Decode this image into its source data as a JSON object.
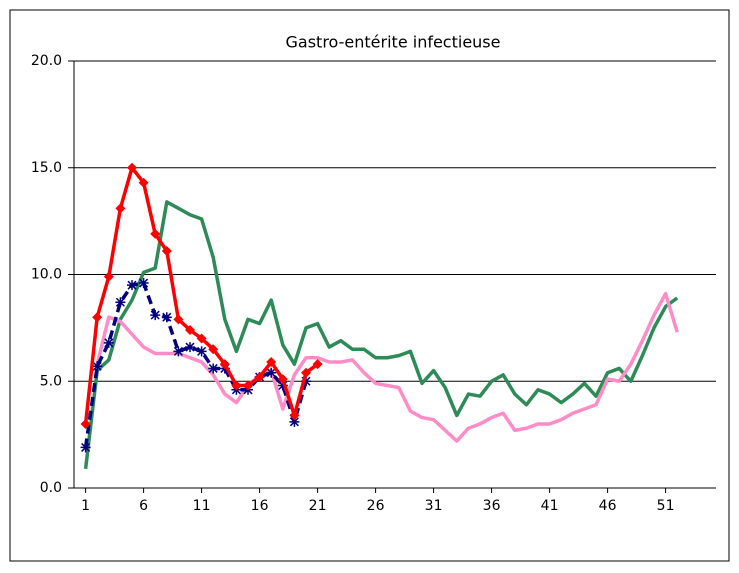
{
  "chart_data": {
    "type": "line",
    "title": "Gastro-entérite  infectieuse",
    "x": [
      1,
      2,
      3,
      4,
      5,
      6,
      7,
      8,
      9,
      10,
      11,
      12,
      13,
      14,
      15,
      16,
      17,
      18,
      19,
      20,
      21,
      22,
      23,
      24,
      25,
      26,
      27,
      28,
      29,
      30,
      31,
      32,
      33,
      34,
      35,
      36,
      37,
      38,
      39,
      40,
      41,
      42,
      43,
      44,
      45,
      46,
      47,
      48,
      49,
      50,
      51,
      52
    ],
    "xlim": [
      0,
      55
    ],
    "xticks": [
      1,
      6,
      11,
      16,
      21,
      26,
      31,
      36,
      41,
      46,
      51
    ],
    "ylim": [
      0,
      20
    ],
    "yticks": [
      {
        "value": 0,
        "label": "0.0"
      },
      {
        "value": 5,
        "label": "5.0"
      },
      {
        "value": 10,
        "label": "10.0"
      },
      {
        "value": 15,
        "label": "15.0"
      },
      {
        "value": 20,
        "label": "20.0"
      }
    ],
    "grid": true,
    "series": [
      {
        "color": "#2e8b57",
        "values": [
          0.9,
          5.5,
          6.0,
          7.9,
          8.8,
          10.1,
          10.3,
          13.4,
          13.1,
          12.8,
          12.6,
          10.8,
          7.9,
          6.4,
          7.9,
          7.7,
          8.8,
          6.7,
          5.8,
          7.5,
          7.7,
          6.6,
          6.9,
          6.5,
          6.5,
          6.1,
          6.1,
          6.2,
          6.4,
          4.9,
          5.5,
          4.7,
          3.4,
          4.4,
          4.3,
          5.0,
          5.3,
          4.4,
          3.9,
          4.6,
          4.4,
          4.0,
          4.4,
          4.9,
          4.3,
          5.4,
          5.6,
          5.0,
          6.2,
          7.5,
          8.5,
          8.9
        ]
      },
      {
        "color": "#ff8cc6",
        "values": [
          null,
          5.8,
          8.0,
          7.8,
          7.2,
          6.6,
          6.3,
          6.3,
          6.3,
          6.1,
          5.9,
          5.3,
          4.4,
          4.0,
          4.8,
          5.3,
          5.5,
          3.7,
          5.3,
          6.1,
          6.1,
          5.9,
          5.9,
          6.0,
          5.4,
          4.9,
          4.8,
          4.7,
          3.6,
          3.3,
          3.2,
          2.7,
          2.2,
          2.8,
          3.0,
          3.3,
          3.5,
          2.7,
          2.8,
          3.0,
          3.0,
          3.2,
          3.5,
          3.7,
          3.9,
          5.1,
          5.0,
          5.8,
          6.9,
          8.1,
          9.1,
          7.3
        ]
      },
      {
        "color": "#000080",
        "dash": true,
        "marker": "asterisk",
        "values": [
          1.9,
          5.7,
          6.8,
          8.7,
          9.5,
          9.6,
          8.1,
          8.0,
          6.4,
          6.6,
          6.4,
          5.6,
          5.6,
          4.6,
          4.6,
          5.2,
          5.4,
          4.8,
          3.1,
          5.0,
          null,
          null,
          null,
          null,
          null,
          null,
          null,
          null,
          null,
          null,
          null,
          null,
          null,
          null,
          null,
          null,
          null,
          null,
          null,
          null,
          null,
          null,
          null,
          null,
          null,
          null,
          null,
          null,
          null,
          null,
          null,
          null
        ]
      },
      {
        "color": "#ff0000",
        "marker": "diamond",
        "values": [
          3.0,
          8.0,
          9.9,
          13.1,
          15.0,
          14.3,
          11.9,
          11.1,
          7.9,
          7.4,
          7.0,
          6.5,
          5.8,
          4.8,
          4.8,
          5.2,
          5.9,
          5.1,
          3.4,
          5.4,
          5.8,
          null,
          null,
          null,
          null,
          null,
          null,
          null,
          null,
          null,
          null,
          null,
          null,
          null,
          null,
          null,
          null,
          null,
          null,
          null,
          null,
          null,
          null,
          null,
          null,
          null,
          null,
          null,
          null,
          null,
          null,
          null
        ]
      }
    ]
  }
}
